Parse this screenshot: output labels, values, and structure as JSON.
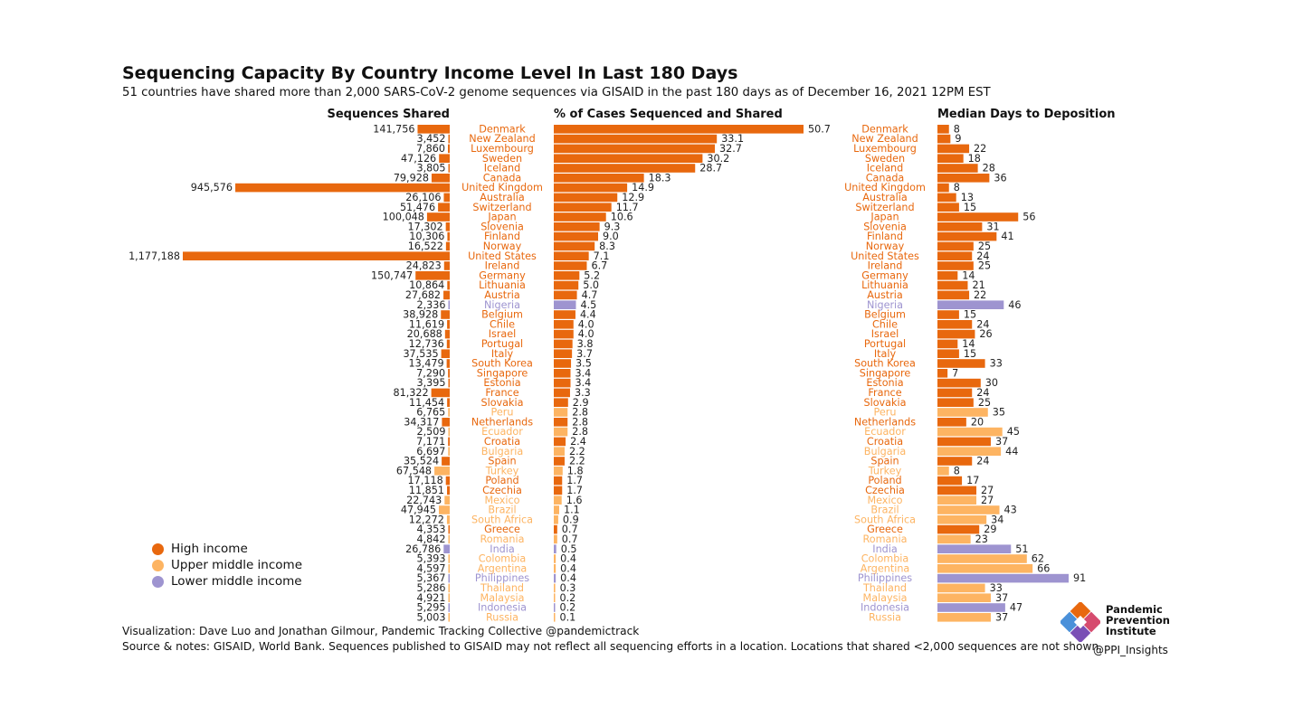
{
  "title": "Sequencing Capacity By Country Income Level In Last 180 Days",
  "subtitle": "51 countries have shared more than 2,000 SARS-CoV-2 genome sequences via GISAID in the past 180 days as of December 16, 2021 12PM EST",
  "footer_line1": "Visualization: Dave Luo and Jonathan Gilmour, Pandemic Tracking Collective @pandemictrack",
  "footer_line2": "Source & notes: GISAID, World Bank. Sequences published to GISAID may not reflect all sequencing efforts in a location. Locations that shared <2,000 sequences are not shown.",
  "logo": {
    "line1": "Pandemic",
    "line2": "Prevention",
    "line3": "Institute",
    "handle": "@PPI_Insights"
  },
  "legend": [
    {
      "label": "High income",
      "key": "high"
    },
    {
      "label": "Upper middle income",
      "key": "upper"
    },
    {
      "label": "Lower middle income",
      "key": "lower"
    }
  ],
  "colors": {
    "high": "#e8680e",
    "upper": "#fdb462",
    "lower": "#9e94d0",
    "text": "#222222"
  },
  "chart_data": [
    {
      "type": "bar",
      "title": "Sequences Shared",
      "orientation": "horizontal",
      "direction": "right-to-left",
      "categories": [
        "Denmark",
        "New Zealand",
        "Luxembourg",
        "Sweden",
        "Iceland",
        "Canada",
        "United Kingdom",
        "Australia",
        "Switzerland",
        "Japan",
        "Slovenia",
        "Finland",
        "Norway",
        "United States",
        "Ireland",
        "Germany",
        "Lithuania",
        "Austria",
        "Nigeria",
        "Belgium",
        "Chile",
        "Israel",
        "Portugal",
        "Italy",
        "South Korea",
        "Singapore",
        "Estonia",
        "France",
        "Slovakia",
        "Peru",
        "Netherlands",
        "Ecuador",
        "Croatia",
        "Bulgaria",
        "Spain",
        "Turkey",
        "Poland",
        "Czechia",
        "Mexico",
        "Brazil",
        "South Africa",
        "Greece",
        "Romania",
        "India",
        "Colombia",
        "Argentina",
        "Philippines",
        "Thailand",
        "Malaysia",
        "Indonesia",
        "Russia"
      ],
      "income": [
        "high",
        "high",
        "high",
        "high",
        "high",
        "high",
        "high",
        "high",
        "high",
        "high",
        "high",
        "high",
        "high",
        "high",
        "high",
        "high",
        "high",
        "high",
        "lower",
        "high",
        "high",
        "high",
        "high",
        "high",
        "high",
        "high",
        "high",
        "high",
        "high",
        "upper",
        "high",
        "upper",
        "high",
        "upper",
        "high",
        "upper",
        "high",
        "high",
        "upper",
        "upper",
        "upper",
        "high",
        "upper",
        "lower",
        "upper",
        "upper",
        "lower",
        "upper",
        "upper",
        "lower",
        "upper"
      ],
      "values": [
        141756,
        3452,
        7860,
        47126,
        3805,
        79928,
        945576,
        26106,
        51476,
        100048,
        17302,
        10306,
        16522,
        1177188,
        24823,
        150747,
        10864,
        27682,
        2336,
        38928,
        11619,
        20688,
        12736,
        37535,
        13479,
        7290,
        3395,
        81322,
        11454,
        6765,
        34317,
        2509,
        7171,
        6697,
        35524,
        67548,
        17118,
        11851,
        22743,
        47945,
        12272,
        4353,
        4842,
        26786,
        5393,
        4597,
        5367,
        5286,
        4921,
        5295,
        5003
      ],
      "labels": [
        "141,756",
        "3,452",
        "7,860",
        "47,126",
        "3,805",
        "79,928",
        "945,576",
        "26,106",
        "51,476",
        "100,048",
        "17,302",
        "10,306",
        "16,522",
        "1,177,188",
        "24,823",
        "150,747",
        "10,864",
        "27,682",
        "2,336",
        "38,928",
        "11,619",
        "20,688",
        "12,736",
        "37,535",
        "13,479",
        "7,290",
        "3,395",
        "81,322",
        "11,454",
        "6,765",
        "34,317",
        "2,509",
        "7,171",
        "6,697",
        "35,524",
        "67,548",
        "17,118",
        "11,851",
        "22,743",
        "47,945",
        "12,272",
        "4,353",
        "4,842",
        "26,786",
        "5,393",
        "4,597",
        "5,367",
        "5,286",
        "4,921",
        "5,295",
        "5,003"
      ]
    },
    {
      "type": "bar",
      "title": "% of Cases Sequenced and Shared",
      "orientation": "horizontal",
      "values": [
        50.7,
        33.1,
        32.7,
        30.2,
        28.7,
        18.3,
        14.9,
        12.9,
        11.7,
        10.6,
        9.3,
        9.0,
        8.3,
        7.1,
        6.7,
        5.2,
        5.0,
        4.7,
        4.5,
        4.4,
        4.0,
        4.0,
        3.8,
        3.7,
        3.5,
        3.4,
        3.4,
        3.3,
        2.9,
        2.8,
        2.8,
        2.8,
        2.4,
        2.2,
        2.2,
        1.8,
        1.7,
        1.7,
        1.6,
        1.1,
        0.9,
        0.7,
        0.7,
        0.5,
        0.4,
        0.4,
        0.4,
        0.3,
        0.2,
        0.2,
        0.1
      ],
      "labels": [
        "50.7",
        "33.1",
        "32.7",
        "30.2",
        "28.7",
        "18.3",
        "14.9",
        "12.9",
        "11.7",
        "10.6",
        "9.3",
        "9.0",
        "8.3",
        "7.1",
        "6.7",
        "5.2",
        "5.0",
        "4.7",
        "4.5",
        "4.4",
        "4.0",
        "4.0",
        "3.8",
        "3.7",
        "3.5",
        "3.4",
        "3.4",
        "3.3",
        "2.9",
        "2.8",
        "2.8",
        "2.8",
        "2.4",
        "2.2",
        "2.2",
        "1.8",
        "1.7",
        "1.7",
        "1.6",
        "1.1",
        "0.9",
        "0.7",
        "0.7",
        "0.5",
        "0.4",
        "0.4",
        "0.4",
        "0.3",
        "0.2",
        "0.2",
        "0.1"
      ]
    },
    {
      "type": "bar",
      "title": "Median Days to Deposition",
      "orientation": "horizontal",
      "values": [
        8,
        9,
        22,
        18,
        28,
        36,
        8,
        13,
        15,
        56,
        31,
        41,
        25,
        24,
        25,
        14,
        21,
        22,
        46,
        15,
        24,
        26,
        14,
        15,
        33,
        7,
        30,
        24,
        25,
        35,
        20,
        45,
        37,
        44,
        24,
        8,
        17,
        27,
        27,
        43,
        34,
        29,
        23,
        51,
        62,
        66,
        91,
        33,
        37,
        47,
        37
      ]
    }
  ]
}
